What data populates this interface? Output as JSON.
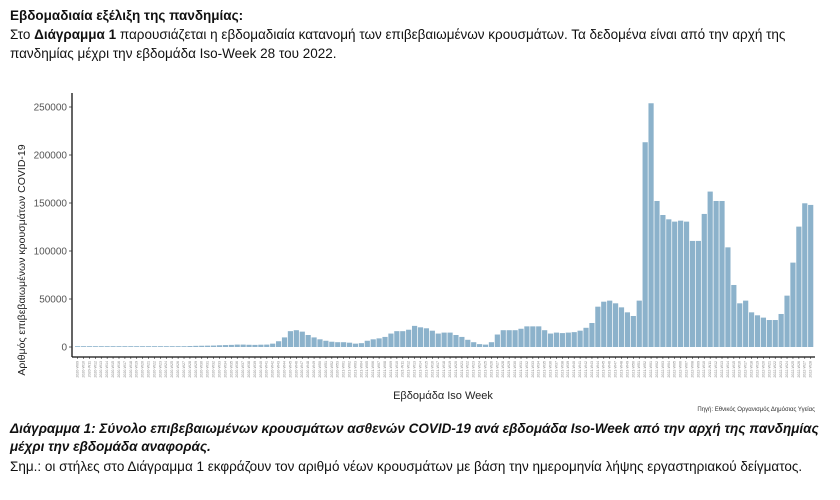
{
  "intro": {
    "heading": "Εβδομαδιαία εξέλιξη της πανδημίας:",
    "text_prefix": "Στο ",
    "text_bold": "Διάγραμμα 1",
    "text_rest": " παρουσιάζεται η εβδομαδιαία κατανομή των επιβεβαιωμένων κρουσμάτων. Τα δεδομένα είναι από την αρχή της πανδημίας μέχρι την εβδομάδα Iso-Week 28 του 2022."
  },
  "caption": "Διάγραμμα 1: Σύνολο επιβεβαιωμένων κρουσμάτων ασθενών COVID-19 ανά εβδομάδα Iso-Week από την αρχή της πανδημίας μέχρι την εβδομάδα αναφοράς.",
  "note": "Σημ.: οι στήλες στο Διάγραμμα 1 εκφράζουν τον αριθμό νέων κρουσμάτων με βάση την ημερομηνία λήψης εργαστηριακού δείγματος.",
  "chart_data": {
    "type": "bar",
    "title": "",
    "xlabel": "Εβδομάδα Iso Week",
    "ylabel": "Αριθμός επιβεβαιωμένων κρουσμάτων COVID-19",
    "source": "Πηγή: Εθνικός Οργανισμός Δημόσιας Υγείας",
    "ylim": [
      0,
      260000
    ],
    "yticks": [
      0,
      50000,
      100000,
      150000,
      200000,
      250000
    ],
    "ytick_labels": [
      "0",
      "50000",
      "100000",
      "150000",
      "200000",
      "250000"
    ],
    "bar_color": "#8cb2cb",
    "grid": false,
    "categories": [
      "2020-W09",
      "2020-W10",
      "2020-W11",
      "2020-W12",
      "2020-W13",
      "2020-W14",
      "2020-W15",
      "2020-W16",
      "2020-W17",
      "2020-W18",
      "2020-W19",
      "2020-W20",
      "2020-W21",
      "2020-W22",
      "2020-W23",
      "2020-W24",
      "2020-W25",
      "2020-W26",
      "2020-W27",
      "2020-W28",
      "2020-W29",
      "2020-W30",
      "2020-W31",
      "2020-W32",
      "2020-W33",
      "2020-W34",
      "2020-W35",
      "2020-W36",
      "2020-W37",
      "2020-W38",
      "2020-W39",
      "2020-W40",
      "2020-W41",
      "2020-W42",
      "2020-W43",
      "2020-W44",
      "2020-W45",
      "2020-W46",
      "2020-W47",
      "2020-W48",
      "2020-W49",
      "2020-W50",
      "2020-W51",
      "2020-W52",
      "2020-W53",
      "2021-W01",
      "2021-W02",
      "2021-W03",
      "2021-W04",
      "2021-W05",
      "2021-W06",
      "2021-W07",
      "2021-W08",
      "2021-W09",
      "2021-W10",
      "2021-W11",
      "2021-W12",
      "2021-W13",
      "2021-W14",
      "2021-W15",
      "2021-W16",
      "2021-W17",
      "2021-W18",
      "2021-W19",
      "2021-W20",
      "2021-W21",
      "2021-W22",
      "2021-W23",
      "2021-W24",
      "2021-W25",
      "2021-W26",
      "2021-W27",
      "2021-W28",
      "2021-W29",
      "2021-W30",
      "2021-W31",
      "2021-W32",
      "2021-W33",
      "2021-W34",
      "2021-W35",
      "2021-W36",
      "2021-W37",
      "2021-W38",
      "2021-W39",
      "2021-W40",
      "2021-W41",
      "2021-W42",
      "2021-W43",
      "2021-W44",
      "2021-W45",
      "2021-W46",
      "2021-W47",
      "2021-W48",
      "2021-W49",
      "2021-W50",
      "2021-W51",
      "2021-W52",
      "2022-W01",
      "2022-W02",
      "2022-W03",
      "2022-W04",
      "2022-W05",
      "2022-W06",
      "2022-W07",
      "2022-W08",
      "2022-W09",
      "2022-W10",
      "2022-W11",
      "2022-W12",
      "2022-W13",
      "2022-W14",
      "2022-W15",
      "2022-W16",
      "2022-W17",
      "2022-W18",
      "2022-W19",
      "2022-W20",
      "2022-W21",
      "2022-W22",
      "2022-W23",
      "2022-W24",
      "2022-W25",
      "2022-W26",
      "2022-W27",
      "2022-W28"
    ],
    "values": [
      50,
      300,
      600,
      700,
      600,
      400,
      300,
      200,
      150,
      100,
      100,
      150,
      200,
      250,
      300,
      400,
      500,
      600,
      800,
      1000,
      1200,
      1300,
      1400,
      1500,
      1800,
      2000,
      2200,
      2500,
      2500,
      2300,
      2200,
      2400,
      2500,
      3500,
      6000,
      10000,
      16500,
      17500,
      16000,
      12500,
      10000,
      8000,
      6500,
      5500,
      5000,
      5000,
      4500,
      3500,
      4000,
      6500,
      8000,
      9000,
      10500,
      14000,
      16500,
      16500,
      18000,
      22000,
      20500,
      19500,
      17000,
      14000,
      15000,
      15000,
      12500,
      10500,
      7500,
      5000,
      3000,
      2500,
      5000,
      13000,
      17500,
      17500,
      17500,
      19000,
      21500,
      21500,
      21500,
      17500,
      14000,
      15000,
      14500,
      15000,
      15500,
      17000,
      20000,
      25000,
      42000,
      47200,
      48300,
      45500,
      41300,
      36100,
      32300,
      48300,
      213300,
      253900,
      152100,
      137500,
      133000,
      130600,
      131600,
      130600,
      110500,
      110500,
      138600,
      161900,
      152100,
      152100,
      103800,
      64600,
      45500,
      48300,
      36100,
      33000,
      30600,
      28100,
      28100,
      34400,
      53500,
      87900,
      125400,
      149700,
      148000
    ]
  }
}
